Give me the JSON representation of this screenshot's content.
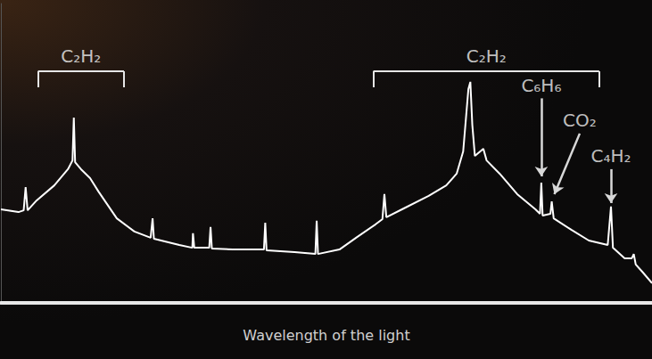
{
  "chart_data": {
    "type": "line",
    "x_label": "Wavelength of the light",
    "xlim": [
      0,
      100
    ],
    "ylim": [
      0,
      120
    ],
    "tick_labels": false,
    "grid": false,
    "color": "#ffffff",
    "x": [
      0,
      2.7,
      3.5,
      3.8,
      4.1,
      5.5,
      8.2,
      10.3,
      11.0,
      11.2,
      11.4,
      12.3,
      13.7,
      15.0,
      17.8,
      20.5,
      23.0,
      23.3,
      23.5,
      27.4,
      29.4,
      29.5,
      29.7,
      32.0,
      32.2,
      32.4,
      35.6,
      40.4,
      40.6,
      40.8,
      45.1,
      48.3,
      48.5,
      48.7,
      52.0,
      54.7,
      57.5,
      58.6,
      58.9,
      59.2,
      61.6,
      65.7,
      68.4,
      70.0,
      71.0,
      71.8,
      72.1,
      72.4,
      72.8,
      74.1,
      74.6,
      76.6,
      79.3,
      82.1,
      82.8,
      83.0,
      83.2,
      84.4,
      84.6,
      84.9,
      87.6,
      90.3,
      93.2,
      93.7,
      94.0,
      95.8,
      96.9,
      97.2,
      97.5,
      98.5,
      100
    ],
    "values": [
      37.5,
      36.4,
      37.1,
      46.4,
      37.1,
      41.1,
      47.1,
      53.6,
      57.1,
      74.3,
      56.4,
      53.6,
      50,
      44.6,
      33.9,
      28.6,
      26.1,
      33.9,
      25.7,
      23.2,
      22.1,
      27.9,
      22.1,
      22.1,
      30.4,
      21.8,
      21.4,
      21.4,
      32.1,
      21.1,
      20.4,
      19.6,
      32.9,
      19.6,
      21.4,
      26.4,
      31.4,
      33.6,
      43.6,
      34.3,
      37.5,
      42.9,
      47.1,
      51.8,
      60.7,
      85.7,
      88.6,
      71.4,
      58.9,
      61.8,
      57.1,
      51.8,
      43.6,
      37.5,
      35.7,
      48.2,
      35,
      35.7,
      40.7,
      33.9,
      29.3,
      25,
      23.2,
      38.6,
      22.1,
      17.9,
      17.9,
      19.6,
      15.4,
      12.5,
      7.9
    ],
    "brackets": [
      {
        "text": "C₂H₂",
        "x": [
          5.7,
          18.9
        ],
        "y": 92.9
      },
      {
        "text": "C₂H₂",
        "x": [
          57.2,
          91.9
        ],
        "y": 92.9
      }
    ],
    "arrows": [
      {
        "text": "C₆H₆",
        "from": [
          83.0,
          82.0
        ],
        "to": [
          83.0,
          50.7
        ]
      },
      {
        "text": "CO₂",
        "from": [
          88.9,
          67.9
        ],
        "to": [
          85.0,
          43.6
        ]
      },
      {
        "text": "C₄H₂",
        "from": [
          93.7,
          53.6
        ],
        "to": [
          93.7,
          40.0
        ]
      }
    ]
  }
}
